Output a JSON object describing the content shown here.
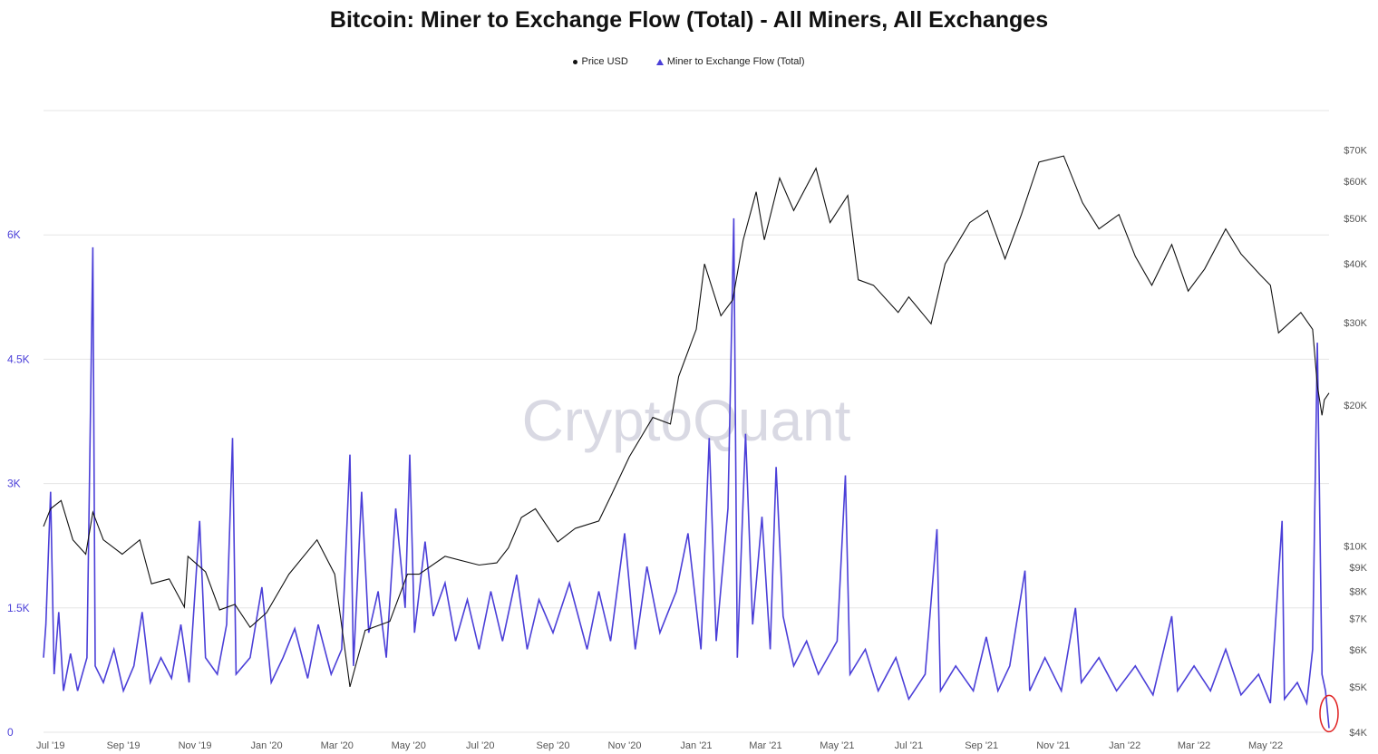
{
  "colors": {
    "price": "#111111",
    "flow": "#4b3fd8",
    "grid": "#e6e6e6",
    "marker": "#e02020"
  },
  "chart_data": {
    "type": "line",
    "title": "Bitcoin: Miner to Exchange Flow (Total) - All Miners, All Exchanges",
    "watermark": "CryptoQuant",
    "legend": {
      "placement": "top-center",
      "entries": [
        "Price USD",
        "Miner to Exchange Flow (Total)"
      ]
    },
    "x_ticks": [
      "Jul '19",
      "Sep '19",
      "Nov '19",
      "Jan '20",
      "Mar '20",
      "May '20",
      "Jul '20",
      "Sep '20",
      "Nov '20",
      "Jan '21",
      "Mar '21",
      "May '21",
      "Jul '21",
      "Sep '21",
      "Nov '21",
      "Jan '22",
      "Mar '22",
      "May '22"
    ],
    "x_range": [
      "2019-06-25",
      "2022-06-24"
    ],
    "y_left": {
      "ticks": [
        "0",
        "1.5K",
        "3K",
        "4.5K",
        "6K"
      ],
      "tick_values": [
        0,
        1500,
        3000,
        4500,
        6000
      ],
      "range": [
        0,
        7500
      ]
    },
    "y_right": {
      "scale": "log",
      "ticks": [
        "$4K",
        "$5K",
        "$6K",
        "$7K",
        "$8K",
        "$9K",
        "$10K",
        "$20K",
        "$30K",
        "$40K",
        "$50K",
        "$60K",
        "$70K"
      ],
      "tick_values": [
        4000,
        5000,
        6000,
        7000,
        8000,
        9000,
        10000,
        20000,
        30000,
        40000,
        50000,
        60000,
        70000
      ],
      "range": [
        4000,
        85000
      ]
    },
    "grid": true,
    "series": [
      {
        "name": "Price USD",
        "axis": "right",
        "points": [
          [
            "2019-06-25",
            11000
          ],
          [
            "2019-07-01",
            12000
          ],
          [
            "2019-07-10",
            12500
          ],
          [
            "2019-07-20",
            10300
          ],
          [
            "2019-07-31",
            9600
          ],
          [
            "2019-08-06",
            11800
          ],
          [
            "2019-08-15",
            10300
          ],
          [
            "2019-08-31",
            9600
          ],
          [
            "2019-09-15",
            10300
          ],
          [
            "2019-09-25",
            8300
          ],
          [
            "2019-10-10",
            8500
          ],
          [
            "2019-10-23",
            7400
          ],
          [
            "2019-10-26",
            9500
          ],
          [
            "2019-11-10",
            8800
          ],
          [
            "2019-11-22",
            7300
          ],
          [
            "2019-12-05",
            7500
          ],
          [
            "2019-12-18",
            6700
          ],
          [
            "2020-01-01",
            7200
          ],
          [
            "2020-01-20",
            8700
          ],
          [
            "2020-02-13",
            10300
          ],
          [
            "2020-02-28",
            8700
          ],
          [
            "2020-03-12",
            5000
          ],
          [
            "2020-03-25",
            6600
          ],
          [
            "2020-04-15",
            6900
          ],
          [
            "2020-04-30",
            8700
          ],
          [
            "2020-05-10",
            8700
          ],
          [
            "2020-06-01",
            9500
          ],
          [
            "2020-06-30",
            9100
          ],
          [
            "2020-07-15",
            9200
          ],
          [
            "2020-07-25",
            9900
          ],
          [
            "2020-08-05",
            11500
          ],
          [
            "2020-08-17",
            12000
          ],
          [
            "2020-09-05",
            10200
          ],
          [
            "2020-09-20",
            10900
          ],
          [
            "2020-10-10",
            11300
          ],
          [
            "2020-10-21",
            12900
          ],
          [
            "2020-11-05",
            15500
          ],
          [
            "2020-11-25",
            18800
          ],
          [
            "2020-12-10",
            18200
          ],
          [
            "2020-12-17",
            23000
          ],
          [
            "2021-01-01",
            29000
          ],
          [
            "2021-01-08",
            40000
          ],
          [
            "2021-01-22",
            31000
          ],
          [
            "2021-02-01",
            33500
          ],
          [
            "2021-02-10",
            45000
          ],
          [
            "2021-02-21",
            57000
          ],
          [
            "2021-02-28",
            45000
          ],
          [
            "2021-03-13",
            61000
          ],
          [
            "2021-03-25",
            52000
          ],
          [
            "2021-04-13",
            64000
          ],
          [
            "2021-04-25",
            49000
          ],
          [
            "2021-05-10",
            56000
          ],
          [
            "2021-05-19",
            37000
          ],
          [
            "2021-06-01",
            36000
          ],
          [
            "2021-06-22",
            31500
          ],
          [
            "2021-07-01",
            34000
          ],
          [
            "2021-07-20",
            29800
          ],
          [
            "2021-08-01",
            40000
          ],
          [
            "2021-08-22",
            49000
          ],
          [
            "2021-09-06",
            52000
          ],
          [
            "2021-09-21",
            41000
          ],
          [
            "2021-10-05",
            51000
          ],
          [
            "2021-10-20",
            66000
          ],
          [
            "2021-11-10",
            68000
          ],
          [
            "2021-11-26",
            54000
          ],
          [
            "2021-12-10",
            47500
          ],
          [
            "2021-12-27",
            51000
          ],
          [
            "2022-01-10",
            41500
          ],
          [
            "2022-01-24",
            36000
          ],
          [
            "2022-02-10",
            44000
          ],
          [
            "2022-02-24",
            35000
          ],
          [
            "2022-03-10",
            39000
          ],
          [
            "2022-03-28",
            47500
          ],
          [
            "2022-04-10",
            42000
          ],
          [
            "2022-04-26",
            38000
          ],
          [
            "2022-05-05",
            36000
          ],
          [
            "2022-05-12",
            28500
          ],
          [
            "2022-05-31",
            31500
          ],
          [
            "2022-06-10",
            29000
          ],
          [
            "2022-06-14",
            22000
          ],
          [
            "2022-06-18",
            19000
          ],
          [
            "2022-06-20",
            20500
          ],
          [
            "2022-06-24",
            21200
          ]
        ]
      },
      {
        "name": "Miner to Exchange Flow (Total)",
        "axis": "left",
        "points": [
          [
            "2019-06-25",
            900
          ],
          [
            "2019-06-27",
            1300
          ],
          [
            "2019-07-01",
            2900
          ],
          [
            "2019-07-04",
            700
          ],
          [
            "2019-07-08",
            1450
          ],
          [
            "2019-07-12",
            500
          ],
          [
            "2019-07-18",
            950
          ],
          [
            "2019-07-24",
            500
          ],
          [
            "2019-08-01",
            900
          ],
          [
            "2019-08-06",
            5850
          ],
          [
            "2019-08-08",
            800
          ],
          [
            "2019-08-15",
            600
          ],
          [
            "2019-08-24",
            1000
          ],
          [
            "2019-09-01",
            500
          ],
          [
            "2019-09-10",
            800
          ],
          [
            "2019-09-17",
            1450
          ],
          [
            "2019-09-24",
            600
          ],
          [
            "2019-10-03",
            900
          ],
          [
            "2019-10-12",
            650
          ],
          [
            "2019-10-20",
            1300
          ],
          [
            "2019-10-27",
            600
          ],
          [
            "2019-11-05",
            2550
          ],
          [
            "2019-11-10",
            900
          ],
          [
            "2019-11-20",
            700
          ],
          [
            "2019-11-28",
            1300
          ],
          [
            "2019-12-03",
            3550
          ],
          [
            "2019-12-06",
            700
          ],
          [
            "2019-12-18",
            900
          ],
          [
            "2019-12-28",
            1750
          ],
          [
            "2020-01-05",
            600
          ],
          [
            "2020-01-15",
            900
          ],
          [
            "2020-01-25",
            1250
          ],
          [
            "2020-02-05",
            650
          ],
          [
            "2020-02-14",
            1300
          ],
          [
            "2020-02-25",
            700
          ],
          [
            "2020-03-05",
            1000
          ],
          [
            "2020-03-12",
            3350
          ],
          [
            "2020-03-15",
            800
          ],
          [
            "2020-03-22",
            2900
          ],
          [
            "2020-03-28",
            1200
          ],
          [
            "2020-04-05",
            1700
          ],
          [
            "2020-04-12",
            900
          ],
          [
            "2020-04-20",
            2700
          ],
          [
            "2020-04-28",
            1500
          ],
          [
            "2020-05-02",
            3350
          ],
          [
            "2020-05-06",
            1200
          ],
          [
            "2020-05-15",
            2300
          ],
          [
            "2020-05-22",
            1400
          ],
          [
            "2020-06-01",
            1800
          ],
          [
            "2020-06-10",
            1100
          ],
          [
            "2020-06-20",
            1600
          ],
          [
            "2020-06-30",
            1000
          ],
          [
            "2020-07-10",
            1700
          ],
          [
            "2020-07-20",
            1100
          ],
          [
            "2020-08-01",
            1900
          ],
          [
            "2020-08-10",
            1000
          ],
          [
            "2020-08-20",
            1600
          ],
          [
            "2020-09-01",
            1200
          ],
          [
            "2020-09-15",
            1800
          ],
          [
            "2020-09-30",
            1000
          ],
          [
            "2020-10-10",
            1700
          ],
          [
            "2020-10-20",
            1100
          ],
          [
            "2020-11-01",
            2400
          ],
          [
            "2020-11-10",
            1000
          ],
          [
            "2020-11-20",
            2000
          ],
          [
            "2020-12-01",
            1200
          ],
          [
            "2020-12-15",
            1700
          ],
          [
            "2020-12-25",
            2400
          ],
          [
            "2021-01-05",
            1000
          ],
          [
            "2021-01-12",
            3550
          ],
          [
            "2021-01-18",
            1100
          ],
          [
            "2021-01-28",
            2700
          ],
          [
            "2021-02-02",
            6200
          ],
          [
            "2021-02-05",
            900
          ],
          [
            "2021-02-12",
            3600
          ],
          [
            "2021-02-18",
            1300
          ],
          [
            "2021-02-26",
            2600
          ],
          [
            "2021-03-05",
            1000
          ],
          [
            "2021-03-10",
            3200
          ],
          [
            "2021-03-16",
            1400
          ],
          [
            "2021-03-25",
            800
          ],
          [
            "2021-04-05",
            1100
          ],
          [
            "2021-04-15",
            700
          ],
          [
            "2021-05-01",
            1100
          ],
          [
            "2021-05-08",
            3100
          ],
          [
            "2021-05-12",
            700
          ],
          [
            "2021-05-25",
            1000
          ],
          [
            "2021-06-05",
            500
          ],
          [
            "2021-06-20",
            900
          ],
          [
            "2021-07-01",
            400
          ],
          [
            "2021-07-15",
            700
          ],
          [
            "2021-07-25",
            2450
          ],
          [
            "2021-07-28",
            500
          ],
          [
            "2021-08-10",
            800
          ],
          [
            "2021-08-25",
            500
          ],
          [
            "2021-09-05",
            1150
          ],
          [
            "2021-09-15",
            500
          ],
          [
            "2021-09-25",
            800
          ],
          [
            "2021-10-08",
            1950
          ],
          [
            "2021-10-12",
            500
          ],
          [
            "2021-10-25",
            900
          ],
          [
            "2021-11-08",
            500
          ],
          [
            "2021-11-20",
            1500
          ],
          [
            "2021-11-25",
            600
          ],
          [
            "2021-12-10",
            900
          ],
          [
            "2021-12-25",
            500
          ],
          [
            "2022-01-10",
            800
          ],
          [
            "2022-01-25",
            450
          ],
          [
            "2022-02-10",
            1400
          ],
          [
            "2022-02-15",
            500
          ],
          [
            "2022-03-01",
            800
          ],
          [
            "2022-03-15",
            500
          ],
          [
            "2022-03-28",
            1000
          ],
          [
            "2022-04-10",
            450
          ],
          [
            "2022-04-25",
            700
          ],
          [
            "2022-05-05",
            350
          ],
          [
            "2022-05-15",
            2550
          ],
          [
            "2022-05-17",
            400
          ],
          [
            "2022-05-28",
            600
          ],
          [
            "2022-06-05",
            350
          ],
          [
            "2022-06-10",
            1000
          ],
          [
            "2022-06-14",
            4700
          ],
          [
            "2022-06-18",
            700
          ],
          [
            "2022-06-21",
            500
          ],
          [
            "2022-06-24",
            50
          ]
        ]
      }
    ]
  }
}
